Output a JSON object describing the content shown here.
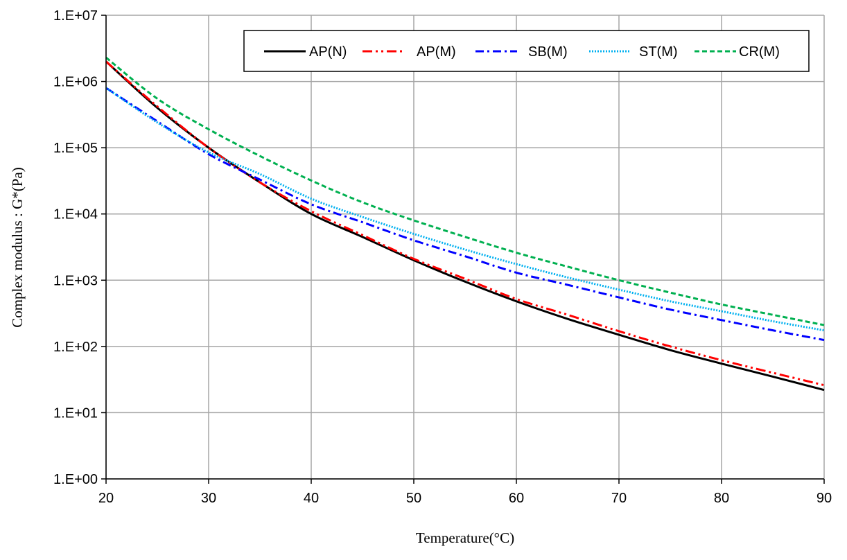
{
  "chart_data": {
    "type": "line",
    "title": "",
    "xlabel": "Temperature(°C)",
    "ylabel": "Complex modulus : G*(Pa)",
    "xlim": [
      20,
      90
    ],
    "ylim": [
      1,
      10000000
    ],
    "yscale": "log",
    "grid": true,
    "legend_position": "top-right",
    "x_ticks": [
      "20",
      "30",
      "40",
      "50",
      "60",
      "70",
      "80",
      "90"
    ],
    "x_tick_values": [
      20,
      30,
      40,
      50,
      60,
      70,
      80,
      90
    ],
    "y_ticks": [
      "1.E+00",
      "1.E+01",
      "1.E+02",
      "1.E+03",
      "1.E+04",
      "1.E+05",
      "1.E+06",
      "1.E+07"
    ],
    "y_tick_values": [
      1,
      10,
      100,
      1000,
      10000,
      100000,
      1000000,
      10000000
    ],
    "series": [
      {
        "name": "AP(N)",
        "color": "#000000",
        "dash": "solid",
        "x": [
          20,
          25,
          30,
          35,
          40,
          45,
          50,
          55,
          60,
          65,
          70,
          75,
          80,
          85,
          90
        ],
        "y": [
          2000000,
          400000,
          100000,
          30000,
          10000,
          4500,
          2000,
          950,
          480,
          260,
          150,
          88,
          55,
          35,
          22
        ]
      },
      {
        "name": "AP(M)",
        "color": "#ff0000",
        "dash": "dashdotdot",
        "x": [
          20,
          25,
          30,
          35,
          40,
          45,
          50,
          55,
          60,
          65,
          70,
          75,
          80,
          85,
          90
        ],
        "y": [
          2000000,
          420000,
          100000,
          30000,
          11000,
          4800,
          2100,
          1050,
          520,
          300,
          170,
          100,
          62,
          40,
          26
        ]
      },
      {
        "name": "SB(M)",
        "color": "#0000ff",
        "dash": "dashdot",
        "x": [
          20,
          25,
          30,
          35,
          40,
          45,
          50,
          55,
          60,
          65,
          70,
          75,
          80,
          85,
          90
        ],
        "y": [
          800000,
          250000,
          80000,
          33000,
          14000,
          7500,
          4000,
          2300,
          1300,
          850,
          550,
          360,
          250,
          175,
          125
        ]
      },
      {
        "name": "ST(M)",
        "color": "#00b0f0",
        "dash": "dotted",
        "x": [
          20,
          25,
          30,
          35,
          40,
          45,
          50,
          55,
          60,
          65,
          70,
          75,
          80,
          85,
          90
        ],
        "y": [
          800000,
          240000,
          85000,
          40000,
          17000,
          9000,
          5000,
          2900,
          1750,
          1100,
          720,
          480,
          340,
          240,
          175
        ]
      },
      {
        "name": "CR(M)",
        "color": "#00b050",
        "dash": "dashed",
        "x": [
          20,
          25,
          30,
          35,
          40,
          45,
          50,
          55,
          60,
          65,
          70,
          75,
          80,
          85,
          90
        ],
        "y": [
          2300000,
          550000,
          190000,
          75000,
          32000,
          15000,
          8000,
          4500,
          2600,
          1600,
          1000,
          650,
          430,
          300,
          210
        ]
      }
    ]
  }
}
